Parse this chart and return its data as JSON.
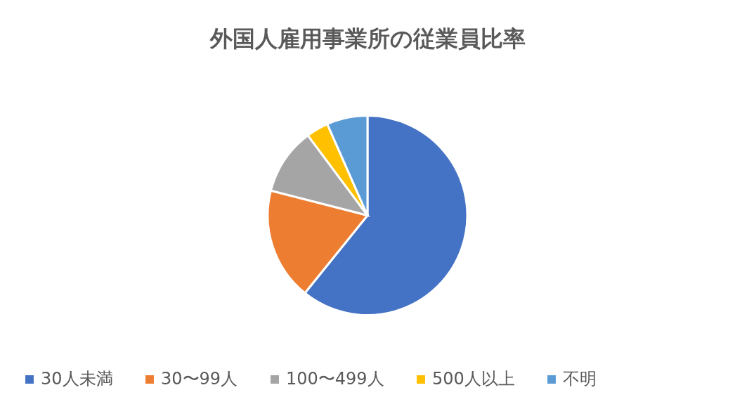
{
  "chart_data": {
    "type": "pie",
    "title": "外国人雇用事業所の従業員比率",
    "categories": [
      "30人未満",
      "30〜99人",
      "100〜499人",
      "500人以上",
      "不明"
    ],
    "values": [
      60.8,
      18.2,
      10.8,
      3.6,
      6.6
    ],
    "colors": [
      "#4472c4",
      "#ed7d31",
      "#a5a5a5",
      "#ffc000",
      "#5b9bd5"
    ],
    "legend": "bottom"
  }
}
